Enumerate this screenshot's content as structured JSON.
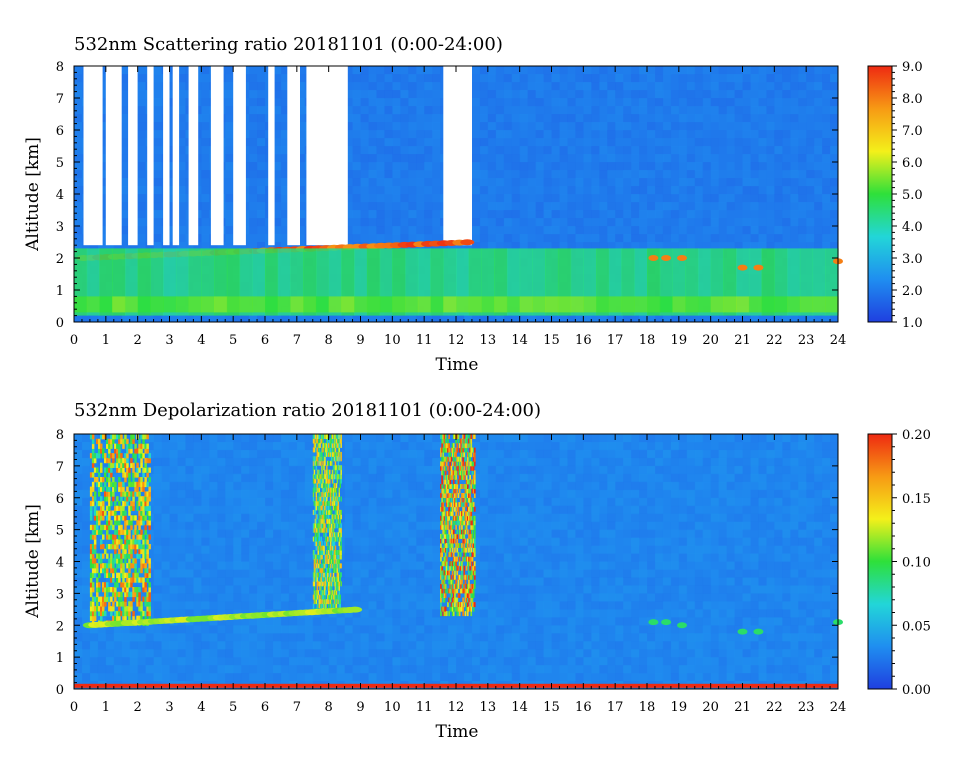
{
  "chart_data": [
    {
      "type": "heatmap",
      "title": "532nm Scattering ratio   20181101 (0:00-24:00)",
      "xlabel": "Time",
      "ylabel": "Altitude [km]",
      "xlim": [
        0,
        24
      ],
      "ylim": [
        0,
        8
      ],
      "x_ticks": [
        "0",
        "1",
        "2",
        "3",
        "4",
        "5",
        "6",
        "7",
        "8",
        "9",
        "10",
        "11",
        "12",
        "13",
        "14",
        "15",
        "16",
        "17",
        "18",
        "19",
        "20",
        "21",
        "22",
        "23",
        "24"
      ],
      "y_ticks": [
        "0",
        "1",
        "2",
        "3",
        "4",
        "5",
        "6",
        "7",
        "8"
      ],
      "colorbar": {
        "range": [
          1.0,
          9.0
        ],
        "ticks": [
          "1.0",
          "2.0",
          "3.0",
          "4.0",
          "5.0",
          "6.0",
          "7.0",
          "8.0",
          "9.0"
        ],
        "colors": [
          "#1f3fe0",
          "#1f8ef0",
          "#22d6d8",
          "#2ee03a",
          "#f4f01a",
          "#f79a14",
          "#ee2a12"
        ]
      },
      "background_value": 2.0,
      "no_data_color": "#ffffff",
      "features": [
        {
          "kind": "no-data",
          "t_ranges": [
            [
              0.3,
              0.9
            ],
            [
              1.0,
              1.5
            ],
            [
              1.7,
              2.0
            ],
            [
              2.3,
              2.5
            ],
            [
              2.8,
              3.0
            ],
            [
              3.1,
              3.3
            ],
            [
              3.6,
              3.9
            ],
            [
              4.3,
              4.7
            ],
            [
              5.0,
              5.4
            ],
            [
              6.1,
              6.3
            ],
            [
              6.7,
              7.1
            ],
            [
              7.3,
              8.6
            ],
            [
              11.6,
              12.5
            ]
          ],
          "alt": [
            2.4,
            8.0
          ]
        },
        {
          "kind": "cloud-base",
          "t": [
            0.3,
            12.6
          ],
          "alt_start": 2.0,
          "alt_end": 2.5,
          "value": 9.0
        },
        {
          "kind": "aerosol-layer",
          "t": [
            0,
            24
          ],
          "alt": [
            0.2,
            2.3
          ],
          "value": 4.5
        },
        {
          "kind": "near-surface",
          "t": [
            0,
            24
          ],
          "alt": [
            0.3,
            0.8
          ],
          "value": 5.3
        },
        {
          "kind": "small-clouds",
          "points": [
            [
              18.2,
              2.0
            ],
            [
              18.6,
              2.0
            ],
            [
              19.1,
              2.0
            ],
            [
              21.0,
              1.7
            ],
            [
              21.5,
              1.7
            ],
            [
              24.0,
              1.9
            ]
          ],
          "value": 8.0
        }
      ]
    },
    {
      "type": "heatmap",
      "title": "532nm Depolarization ratio   20181101 (0:00-24:00)",
      "xlabel": "Time",
      "ylabel": "Altitude [km]",
      "xlim": [
        0,
        24
      ],
      "ylim": [
        0,
        8
      ],
      "x_ticks": [
        "0",
        "1",
        "2",
        "3",
        "4",
        "5",
        "6",
        "7",
        "8",
        "9",
        "10",
        "11",
        "12",
        "13",
        "14",
        "15",
        "16",
        "17",
        "18",
        "19",
        "20",
        "21",
        "22",
        "23",
        "24"
      ],
      "y_ticks": [
        "0",
        "1",
        "2",
        "3",
        "4",
        "5",
        "6",
        "7",
        "8"
      ],
      "colorbar": {
        "range": [
          0.0,
          0.2
        ],
        "ticks": [
          "0.00",
          "0.05",
          "0.10",
          "0.15",
          "0.20"
        ],
        "colors": [
          "#1f3fe0",
          "#1f8ef0",
          "#22d6d8",
          "#2ee03a",
          "#f4f01a",
          "#f79a14",
          "#ee2a12"
        ]
      },
      "background_value": 0.03,
      "features": [
        {
          "kind": "ice-cloud",
          "t": [
            0.5,
            2.4
          ],
          "alt": [
            2.0,
            8.0
          ],
          "value": 0.17
        },
        {
          "kind": "ice-cloud",
          "t": [
            7.5,
            8.4
          ],
          "alt": [
            2.4,
            8.0
          ],
          "value": 0.15
        },
        {
          "kind": "ice-cloud",
          "t": [
            11.5,
            12.6
          ],
          "alt": [
            2.3,
            8.0
          ],
          "value": 0.19
        },
        {
          "kind": "cloud-base",
          "t": [
            0.5,
            9.0
          ],
          "alt_start": 2.0,
          "alt_end": 2.5,
          "value": 0.13
        },
        {
          "kind": "surface-line",
          "t": [
            0,
            24
          ],
          "alt": 0.1,
          "value": 0.2
        },
        {
          "kind": "small-clouds",
          "points": [
            [
              18.2,
              2.1
            ],
            [
              18.6,
              2.1
            ],
            [
              19.1,
              2.0
            ],
            [
              21.0,
              1.8
            ],
            [
              21.5,
              1.8
            ],
            [
              24.0,
              2.1
            ]
          ],
          "value": 0.09
        }
      ]
    }
  ]
}
